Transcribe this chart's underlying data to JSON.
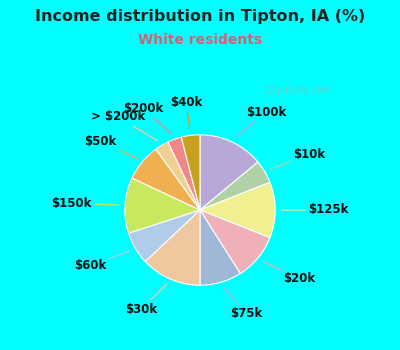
{
  "title": "Income distribution in Tipton, IA (%)",
  "subtitle": "White residents",
  "watermark": "© City-Data.com",
  "background_color": "#00ffff",
  "chart_bg_top": "#d8f0e8",
  "chart_bg_bottom": "#c8e8e0",
  "title_color": "#222222",
  "subtitle_color": "#cc6677",
  "labels": [
    "$100k",
    "$10k",
    "$125k",
    "$20k",
    "$75k",
    "$30k",
    "$60k",
    "$150k",
    "$50k",
    "> $200k",
    "$200k",
    "$40k"
  ],
  "values": [
    14,
    5,
    12,
    10,
    9,
    13,
    7,
    12,
    8,
    3,
    3,
    4
  ],
  "colors": [
    "#b8a8d8",
    "#b0d0a8",
    "#f0f090",
    "#f0b0b8",
    "#a0b8d8",
    "#f0c8a0",
    "#b0cce8",
    "#c8e860",
    "#f0b050",
    "#f0d090",
    "#f08888",
    "#c8a020"
  ],
  "title_fontsize": 11.5,
  "subtitle_fontsize": 10,
  "label_fontsize": 8.5,
  "label_color": "#111111"
}
